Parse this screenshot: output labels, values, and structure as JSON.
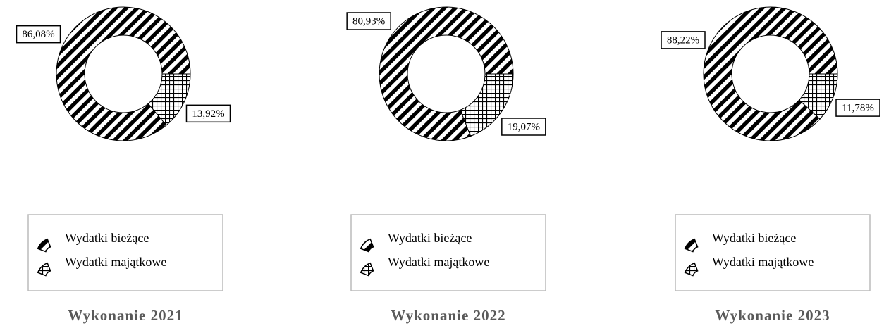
{
  "chart_data": [
    {
      "type": "donut",
      "title": "Wykonanie 2021",
      "categories": [
        "Wydatki bieżące",
        "Wydatki majątkowe"
      ],
      "values": [
        86.08,
        13.92
      ],
      "value_labels": [
        "86,08%",
        "13,92%"
      ],
      "patterns": [
        "stripes",
        "grid"
      ]
    },
    {
      "type": "donut",
      "title": "Wykonanie 2022",
      "categories": [
        "Wydatki bieżące",
        "Wydatki majątkowe"
      ],
      "values": [
        80.93,
        19.07
      ],
      "value_labels": [
        "80,93%",
        "19,07%"
      ],
      "patterns": [
        "stripes",
        "grid"
      ]
    },
    {
      "type": "donut",
      "title": "Wykonanie 2023",
      "categories": [
        "Wydatki bieżące",
        "Wydatki majątkowe"
      ],
      "values": [
        88.22,
        11.78
      ],
      "value_labels": [
        "88,22%",
        "11,78%"
      ],
      "patterns": [
        "stripes",
        "grid"
      ]
    }
  ]
}
